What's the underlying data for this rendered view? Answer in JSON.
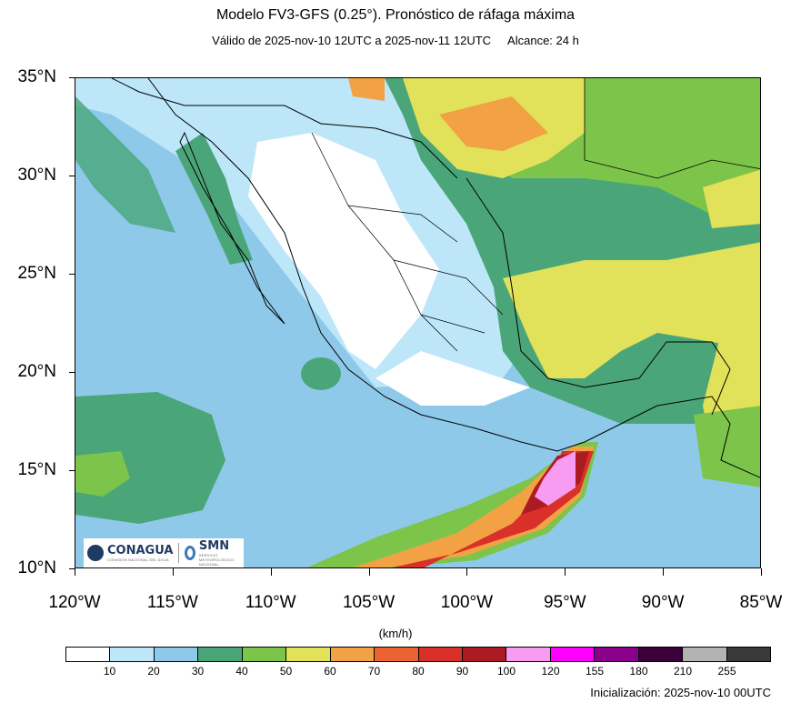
{
  "title": "Modelo FV3-GFS (0.25°). Pronóstico de ráfaga máxima",
  "subtitle": {
    "valid": "Válido de 2025-nov-10 12UTC a 2025-nov-11 12UTC",
    "range": "Alcance: 24 h"
  },
  "map": {
    "lat_labels": [
      "35°N",
      "30°N",
      "25°N",
      "20°N",
      "15°N",
      "10°N"
    ],
    "lon_labels": [
      "120°W",
      "115°W",
      "110°W",
      "105°W",
      "100°W",
      "95°W",
      "90°W",
      "85°W"
    ],
    "extent": {
      "lon": [
        -120,
        -85
      ],
      "lat": [
        10,
        35
      ]
    }
  },
  "colorbar": {
    "units": "(km/h)",
    "colors": [
      "#ffffff",
      "#bde6f9",
      "#8ec9ea",
      "#4aa679",
      "#7cc54a",
      "#e2e15a",
      "#f2a244",
      "#ec6231",
      "#d93029",
      "#ad1b22",
      "#f79cf0",
      "#ff00ff",
      "#8b008b",
      "#3b0039",
      "#b3b3b3",
      "#3a3a3a"
    ],
    "labels": [
      "10",
      "20",
      "30",
      "40",
      "50",
      "60",
      "70",
      "80",
      "90",
      "100",
      "120",
      "155",
      "180",
      "210",
      "255"
    ]
  },
  "logos": {
    "conagua": "CONAGUA",
    "conagua_sub": "COMISIÓN NACIONAL DEL AGUA",
    "smn": "SMN",
    "smn_sub": "SERVICIO METEOROLÓGICO NACIONAL"
  },
  "footer": "Inicialización: 2025-nov-10 00UTC"
}
